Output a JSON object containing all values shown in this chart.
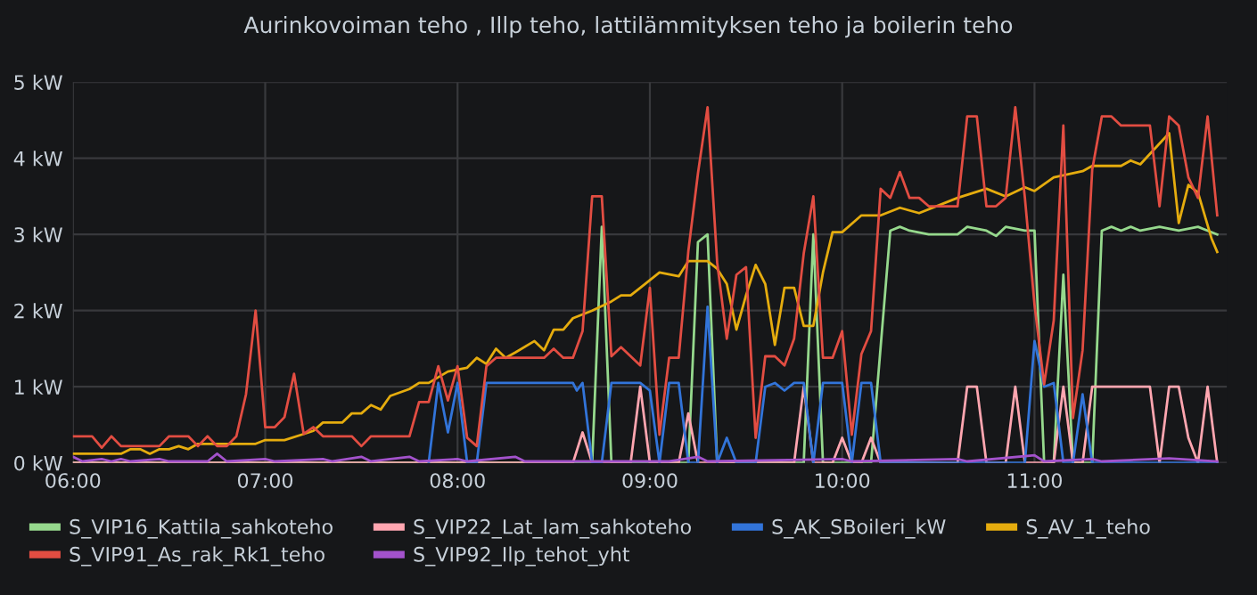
{
  "chart_data": {
    "type": "line",
    "title": "Aurinkovoiman teho , Illp teho, lattilämmityksen teho ja boilerin teho",
    "xlim": [
      6,
      12
    ],
    "xticks": [
      {
        "value": 6,
        "label": "06:00"
      },
      {
        "value": 7,
        "label": "07:00"
      },
      {
        "value": 8,
        "label": "08:00"
      },
      {
        "value": 9,
        "label": "09:00"
      },
      {
        "value": 10,
        "label": "10:00"
      },
      {
        "value": 11,
        "label": "11:00"
      }
    ],
    "ylim": [
      0,
      5
    ],
    "yticks": [
      {
        "value": 0,
        "label": "0 kW"
      },
      {
        "value": 1,
        "label": "1 kW"
      },
      {
        "value": 2,
        "label": "2 kW"
      },
      {
        "value": 3,
        "label": "3 kW"
      },
      {
        "value": 4,
        "label": "4 kW"
      },
      {
        "value": 5,
        "label": "5 kW"
      }
    ],
    "grid": true,
    "legend": "bottom",
    "line_style": "solid",
    "marker": "none",
    "series": [
      {
        "name": "S_VIP16_Kattila_sahkoteho",
        "color": "#96d98d",
        "x": [
          6.0,
          8.7,
          8.75,
          8.8,
          9.2,
          9.25,
          9.3,
          9.35,
          9.8,
          9.85,
          9.9,
          10.15,
          10.25,
          10.3,
          10.35,
          10.45,
          10.6,
          10.65,
          10.75,
          10.8,
          10.85,
          10.95,
          11.0,
          11.05,
          11.1,
          11.15,
          11.2,
          11.3,
          11.35,
          11.4,
          11.45,
          11.5,
          11.55,
          11.65,
          11.75,
          11.85,
          11.95
        ],
        "values": [
          0,
          0,
          3.1,
          0,
          0,
          2.9,
          3.0,
          0,
          0,
          3.0,
          0,
          0,
          3.05,
          3.1,
          3.05,
          3.0,
          3.0,
          3.1,
          3.05,
          2.98,
          3.1,
          3.05,
          3.05,
          0,
          0,
          2.47,
          0,
          0,
          3.05,
          3.1,
          3.05,
          3.1,
          3.05,
          3.1,
          3.05,
          3.1,
          3.0
        ]
      },
      {
        "name": "S_VIP22_Lat_lam_sahkoteho",
        "color": "#ffa6b0",
        "x": [
          6.0,
          8.6,
          8.65,
          8.7,
          8.9,
          8.95,
          9.0,
          9.15,
          9.2,
          9.25,
          9.75,
          9.8,
          9.85,
          9.95,
          10.0,
          10.05,
          10.1,
          10.15,
          10.2,
          10.6,
          10.65,
          10.7,
          10.75,
          10.85,
          10.9,
          10.95,
          11.1,
          11.15,
          11.2,
          11.25,
          11.3,
          11.6,
          11.65,
          11.7,
          11.75,
          11.8,
          11.85,
          11.9,
          11.95
        ],
        "values": [
          0,
          0,
          0.4,
          0,
          0,
          1.0,
          0,
          0,
          0.65,
          0,
          0,
          1.0,
          0,
          0,
          0.33,
          0,
          0,
          0.33,
          0,
          0,
          1.0,
          1.0,
          0,
          0,
          1.0,
          0,
          0,
          1.0,
          0,
          0,
          1.0,
          1.0,
          0,
          1.0,
          1.0,
          0.33,
          0,
          1.0,
          0
        ]
      },
      {
        "name": "S_AK_SBoileri_kW",
        "color": "#3274d9",
        "x": [
          7.85,
          7.9,
          7.95,
          8.0,
          8.05,
          8.1,
          8.15,
          8.6,
          8.62,
          8.65,
          8.7,
          8.75,
          8.8,
          8.95,
          9.0,
          9.05,
          9.1,
          9.15,
          9.2,
          9.25,
          9.3,
          9.35,
          9.4,
          9.45,
          9.55,
          9.6,
          9.65,
          9.7,
          9.75,
          9.8,
          9.85,
          9.9,
          10.0,
          10.05,
          10.1,
          10.15,
          10.2,
          10.95,
          11.0,
          11.05,
          11.1,
          11.15,
          11.2,
          11.25,
          11.3,
          11.95
        ],
        "values": [
          0,
          1.05,
          0.4,
          1.05,
          0,
          0,
          1.05,
          1.05,
          0.95,
          1.05,
          0,
          0,
          1.05,
          1.05,
          0.95,
          0,
          1.05,
          1.05,
          0,
          0,
          2.05,
          0,
          0.33,
          0,
          0,
          1.0,
          1.05,
          0.95,
          1.05,
          1.05,
          0,
          1.05,
          1.05,
          0,
          1.05,
          1.05,
          0,
          0,
          1.6,
          1.0,
          1.05,
          0,
          0,
          0.9,
          0,
          0
        ]
      },
      {
        "name": "S_AV_1_teho",
        "color": "#e5ac0e",
        "x": [
          6.0,
          6.25,
          6.3,
          6.35,
          6.4,
          6.45,
          6.5,
          6.55,
          6.6,
          6.65,
          6.95,
          7.0,
          7.1,
          7.2,
          7.25,
          7.3,
          7.4,
          7.45,
          7.5,
          7.55,
          7.6,
          7.65,
          7.75,
          7.8,
          7.85,
          7.95,
          8.05,
          8.1,
          8.15,
          8.2,
          8.25,
          8.3,
          8.4,
          8.45,
          8.5,
          8.55,
          8.6,
          8.7,
          8.8,
          8.85,
          8.9,
          8.95,
          9.05,
          9.15,
          9.2,
          9.3,
          9.35,
          9.4,
          9.45,
          9.5,
          9.55,
          9.6,
          9.65,
          9.7,
          9.75,
          9.8,
          9.85,
          9.9,
          9.95,
          10.0,
          10.1,
          10.2,
          10.3,
          10.4,
          10.6,
          10.75,
          10.85,
          10.95,
          11.0,
          11.1,
          11.25,
          11.3,
          11.45,
          11.5,
          11.55,
          11.7,
          11.75,
          11.8,
          11.85,
          11.92,
          11.95
        ],
        "values": [
          0.12,
          0.12,
          0.18,
          0.18,
          0.12,
          0.18,
          0.18,
          0.22,
          0.18,
          0.25,
          0.25,
          0.3,
          0.3,
          0.38,
          0.42,
          0.53,
          0.53,
          0.65,
          0.65,
          0.76,
          0.7,
          0.88,
          0.97,
          1.05,
          1.05,
          1.2,
          1.25,
          1.38,
          1.3,
          1.5,
          1.38,
          1.45,
          1.6,
          1.48,
          1.75,
          1.75,
          1.9,
          2.0,
          2.12,
          2.2,
          2.2,
          2.3,
          2.5,
          2.45,
          2.65,
          2.65,
          2.55,
          2.35,
          1.75,
          2.2,
          2.6,
          2.35,
          1.55,
          2.3,
          2.3,
          1.8,
          1.8,
          2.5,
          3.03,
          3.03,
          3.25,
          3.25,
          3.35,
          3.28,
          3.48,
          3.6,
          3.5,
          3.62,
          3.57,
          3.75,
          3.83,
          3.9,
          3.9,
          3.97,
          3.92,
          4.33,
          3.15,
          3.65,
          3.55,
          2.95,
          2.77
        ]
      },
      {
        "name": "S_VIP91_As_rak_Rk1_teho",
        "color": "#e24d42",
        "x": [
          6.0,
          6.1,
          6.15,
          6.2,
          6.25,
          6.45,
          6.5,
          6.6,
          6.65,
          6.7,
          6.75,
          6.8,
          6.85,
          6.9,
          6.95,
          7.0,
          7.05,
          7.1,
          7.15,
          7.2,
          7.25,
          7.3,
          7.45,
          7.5,
          7.55,
          7.75,
          7.8,
          7.85,
          7.9,
          7.95,
          8.0,
          8.05,
          8.1,
          8.15,
          8.2,
          8.45,
          8.5,
          8.55,
          8.6,
          8.65,
          8.7,
          8.75,
          8.8,
          8.85,
          8.95,
          9.0,
          9.05,
          9.1,
          9.15,
          9.2,
          9.25,
          9.3,
          9.35,
          9.4,
          9.45,
          9.5,
          9.55,
          9.6,
          9.65,
          9.7,
          9.75,
          9.8,
          9.85,
          9.9,
          9.95,
          10.0,
          10.05,
          10.1,
          10.15,
          10.2,
          10.25,
          10.3,
          10.35,
          10.4,
          10.45,
          10.6,
          10.65,
          10.7,
          10.75,
          10.8,
          10.85,
          10.9,
          10.95,
          11.0,
          11.05,
          11.1,
          11.15,
          11.2,
          11.25,
          11.3,
          11.35,
          11.4,
          11.45,
          11.6,
          11.65,
          11.7,
          11.75,
          11.8,
          11.85,
          11.9,
          11.95
        ],
        "values": [
          0.35,
          0.35,
          0.2,
          0.35,
          0.22,
          0.22,
          0.35,
          0.35,
          0.22,
          0.35,
          0.22,
          0.22,
          0.35,
          0.9,
          2.0,
          0.47,
          0.47,
          0.6,
          1.17,
          0.38,
          0.47,
          0.35,
          0.35,
          0.22,
          0.35,
          0.35,
          0.8,
          0.8,
          1.27,
          0.82,
          1.27,
          0.33,
          0.22,
          1.27,
          1.38,
          1.38,
          1.5,
          1.38,
          1.38,
          1.73,
          3.5,
          3.5,
          1.4,
          1.52,
          1.28,
          2.3,
          0.37,
          1.38,
          1.38,
          2.78,
          3.8,
          4.67,
          2.63,
          1.63,
          2.47,
          2.57,
          0.33,
          1.4,
          1.4,
          1.28,
          1.63,
          2.75,
          3.5,
          1.38,
          1.38,
          1.73,
          0.37,
          1.43,
          1.73,
          3.6,
          3.48,
          3.82,
          3.48,
          3.48,
          3.37,
          3.37,
          4.55,
          4.55,
          3.37,
          3.37,
          3.48,
          4.67,
          3.48,
          2.08,
          1.03,
          1.87,
          4.43,
          0.59,
          1.48,
          3.85,
          4.55,
          4.55,
          4.43,
          4.43,
          3.37,
          4.55,
          4.43,
          3.75,
          3.48,
          4.55,
          3.25
        ]
      },
      {
        "name": "S_VIP92_Ilp_tehot_yht",
        "color": "#a352cc",
        "x": [
          6.0,
          6.05,
          6.15,
          6.2,
          6.25,
          6.3,
          6.45,
          6.5,
          6.7,
          6.75,
          6.8,
          7.0,
          7.05,
          7.3,
          7.35,
          7.5,
          7.55,
          7.75,
          7.8,
          8.0,
          8.05,
          8.3,
          8.35,
          9.1,
          9.25,
          9.3,
          10.0,
          10.05,
          10.6,
          10.65,
          11.0,
          11.05,
          11.3,
          11.35,
          11.7,
          11.95
        ],
        "values": [
          0.08,
          0.02,
          0.05,
          0.02,
          0.05,
          0.02,
          0.05,
          0.02,
          0.02,
          0.12,
          0.02,
          0.05,
          0.02,
          0.05,
          0.02,
          0.08,
          0.02,
          0.08,
          0.02,
          0.05,
          0.02,
          0.08,
          0.02,
          0.02,
          0.08,
          0.02,
          0.05,
          0.02,
          0.05,
          0.02,
          0.1,
          0.02,
          0.05,
          0.02,
          0.06,
          0.02
        ]
      }
    ]
  }
}
